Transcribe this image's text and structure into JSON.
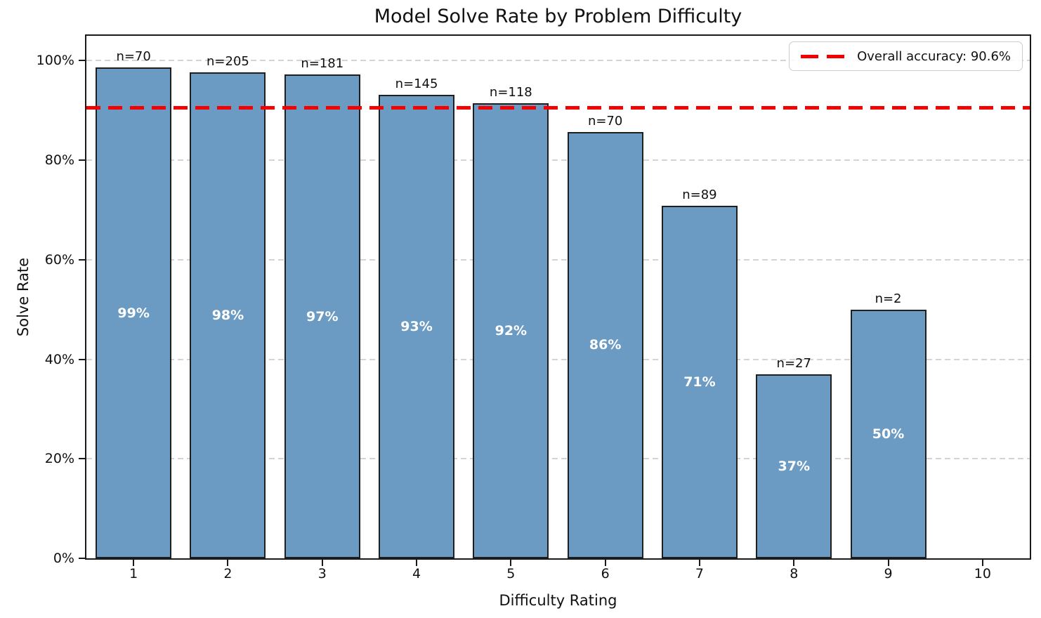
{
  "chart_data": {
    "type": "bar",
    "title": "Model Solve Rate by Problem Difficulty",
    "xlabel": "Difficulty Rating",
    "ylabel": "Solve Rate",
    "x_categories": [
      "1",
      "2",
      "3",
      "4",
      "5",
      "6",
      "7",
      "8",
      "9",
      "10"
    ],
    "y_tick_values": [
      0,
      20,
      40,
      60,
      80,
      100
    ],
    "y_tick_labels": [
      "0%",
      "20%",
      "40%",
      "60%",
      "80%",
      "100%"
    ],
    "ylim": [
      0,
      105
    ],
    "grid": "horizontal dashed",
    "legend_position": "upper right",
    "bars": [
      {
        "category": "1",
        "value_pct": 98.6,
        "label": "99%",
        "n_label": "n=70"
      },
      {
        "category": "2",
        "value_pct": 97.6,
        "label": "98%",
        "n_label": "n=205"
      },
      {
        "category": "3",
        "value_pct": 97.2,
        "label": "97%",
        "n_label": "n=181"
      },
      {
        "category": "4",
        "value_pct": 93.1,
        "label": "93%",
        "n_label": "n=145"
      },
      {
        "category": "5",
        "value_pct": 91.5,
        "label": "92%",
        "n_label": "n=118"
      },
      {
        "category": "6",
        "value_pct": 85.7,
        "label": "86%",
        "n_label": "n=70"
      },
      {
        "category": "7",
        "value_pct": 70.8,
        "label": "71%",
        "n_label": "n=89"
      },
      {
        "category": "8",
        "value_pct": 37.0,
        "label": "37%",
        "n_label": "n=27"
      },
      {
        "category": "9",
        "value_pct": 50.0,
        "label": "50%",
        "n_label": "n=2"
      }
    ],
    "reference_line": {
      "value_pct": 90.6,
      "label": "Overall accuracy: 90.6%",
      "color": "#ff0000",
      "style": "dashed"
    },
    "colors": {
      "bar_fill": "#6b9bc3",
      "bar_edge": "#1f1f1f",
      "grid": "#d4d4d4",
      "reference": "#ff0000"
    }
  }
}
